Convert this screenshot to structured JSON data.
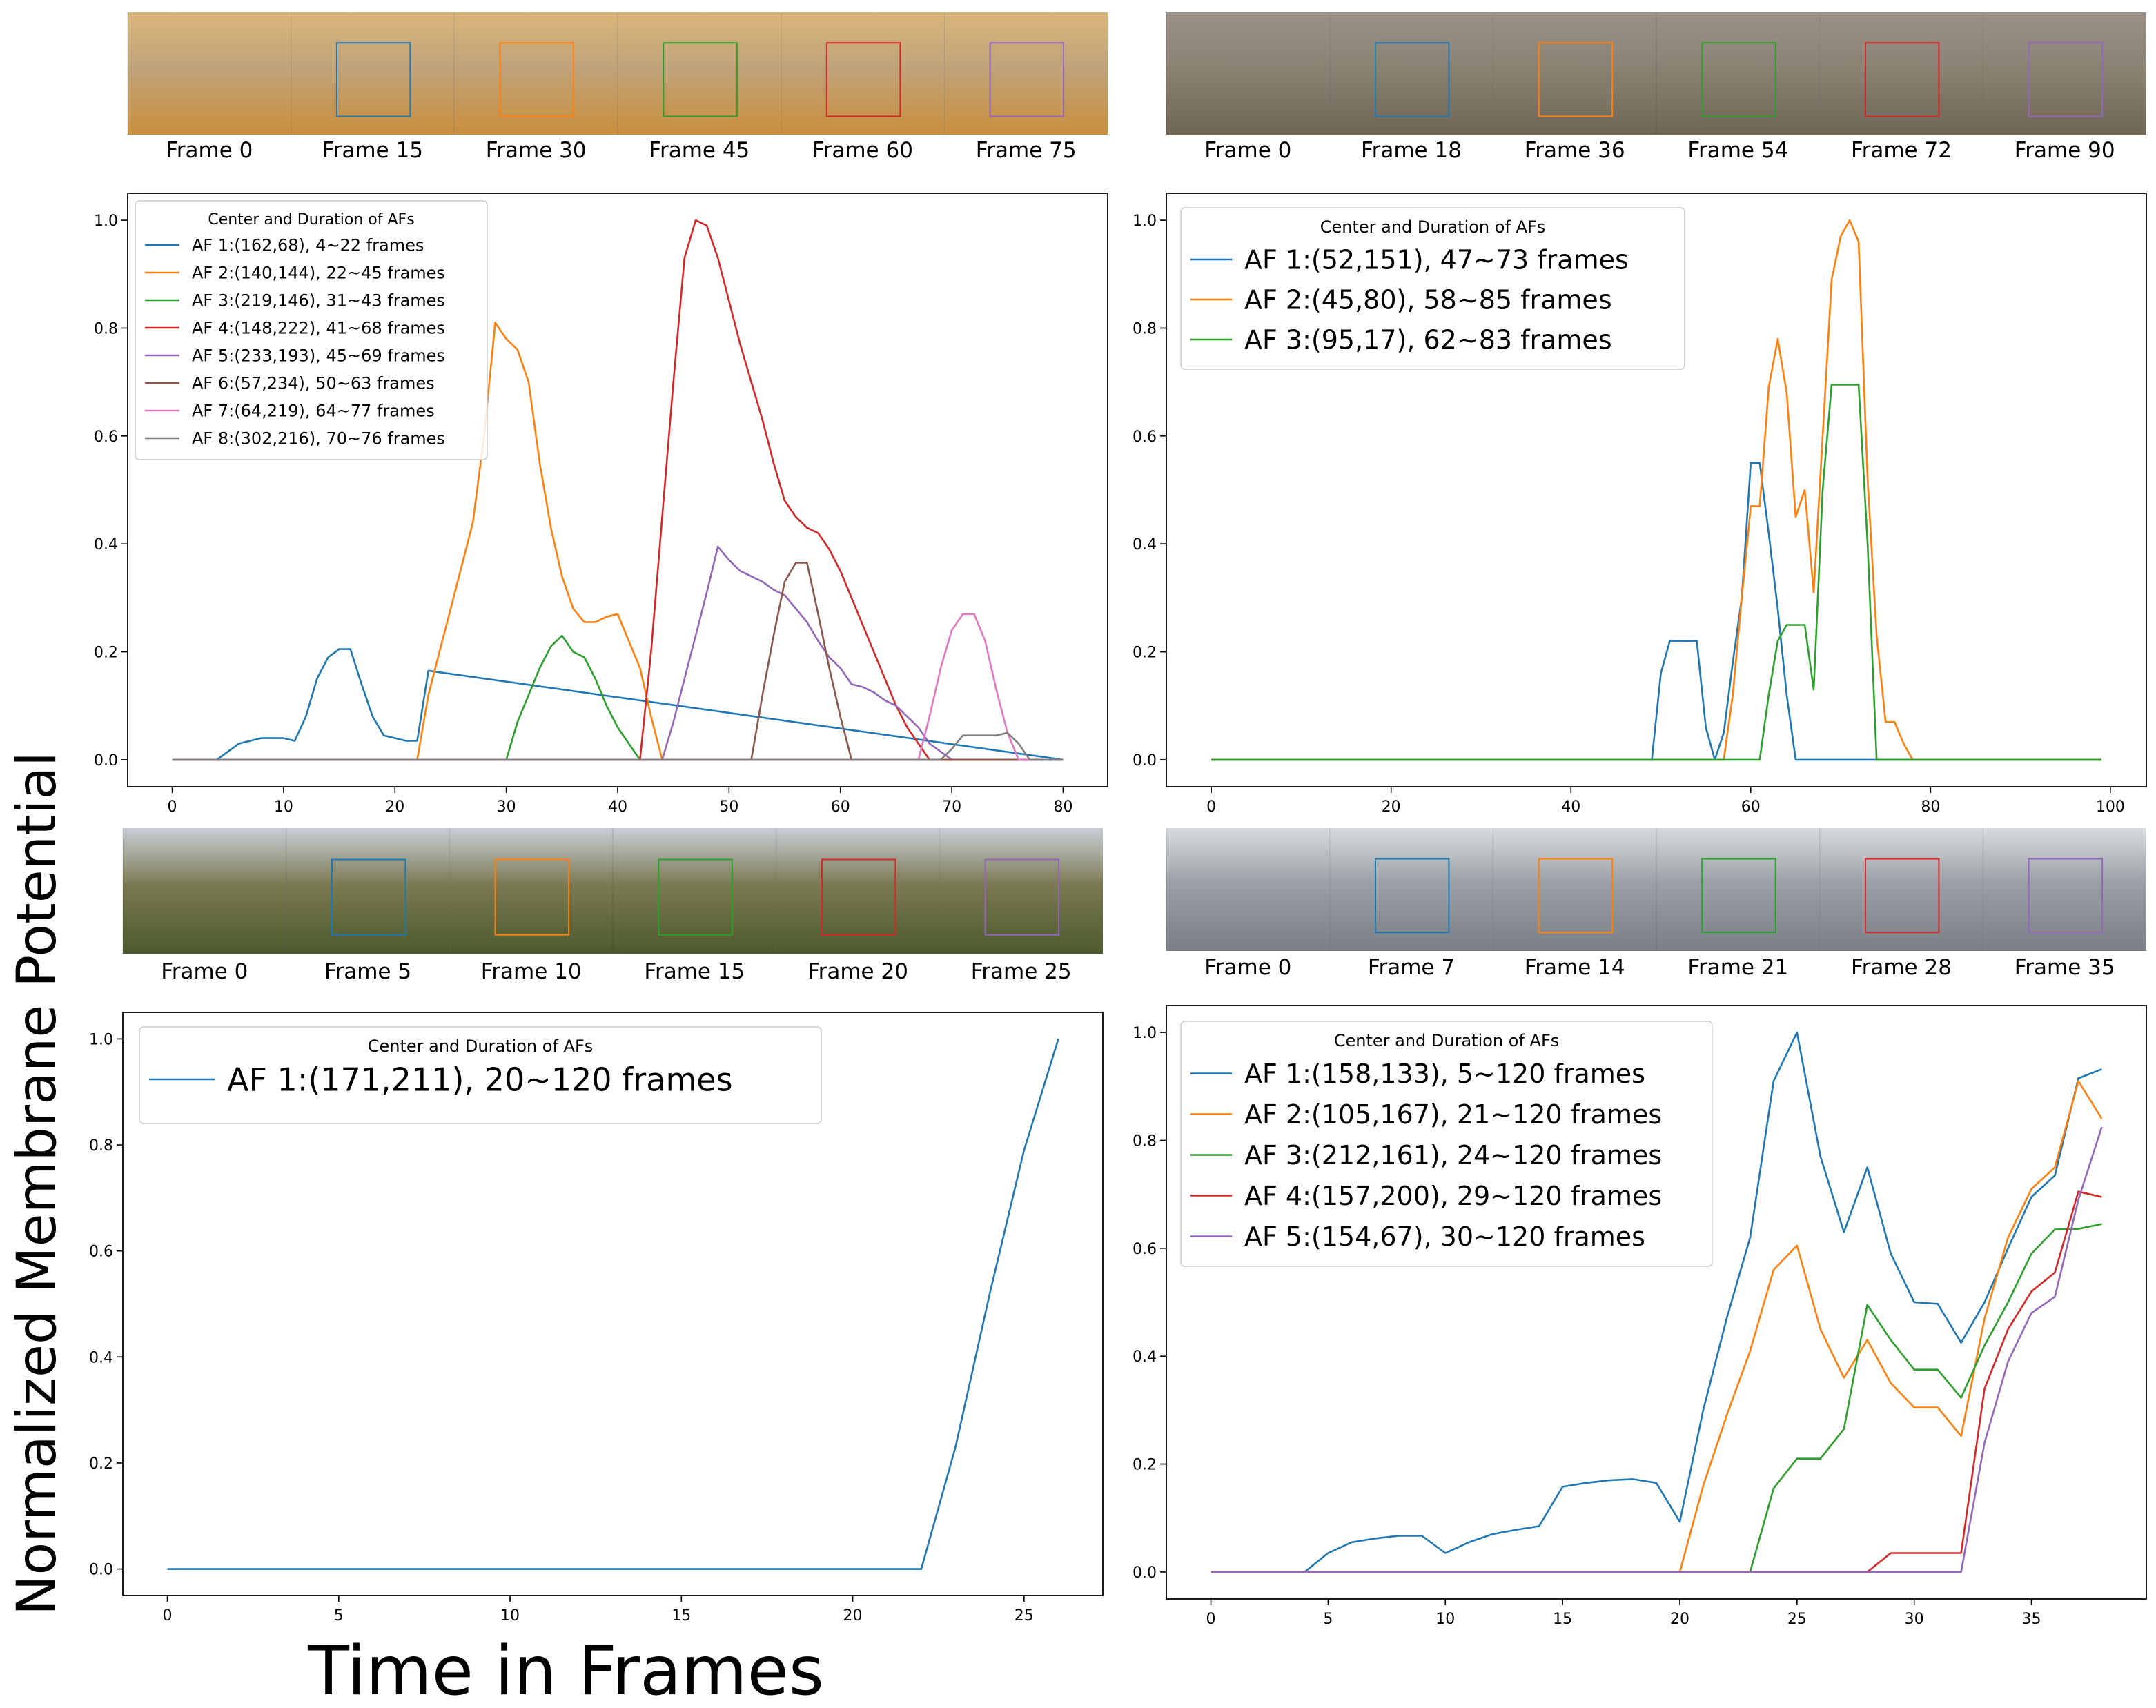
{
  "ylabel": "Normalized Membrane Potential",
  "xlabel": "Time in Frames",
  "colors": [
    "#1f77b4",
    "#ff7f0e",
    "#2ca02c",
    "#d62728",
    "#9467bd",
    "#8c564b",
    "#e377c2",
    "#7f7f7f"
  ],
  "thumbnails": [
    {
      "name": "desert-car",
      "labels": [
        "Frame 0",
        "Frame 15",
        "Frame 30",
        "Frame 45",
        "Frame 60",
        "Frame 75"
      ],
      "scene": [
        "#d9b67a",
        "#c98f3d",
        "#bfa37a"
      ]
    },
    {
      "name": "bear",
      "labels": [
        "Frame 0",
        "Frame 18",
        "Frame 36",
        "Frame 54",
        "Frame 72",
        "Frame 90"
      ],
      "scene": [
        "#9a9287",
        "#6f6656",
        "#8a8273"
      ]
    },
    {
      "name": "bird-forest",
      "labels": [
        "Frame 0",
        "Frame 5",
        "Frame 10",
        "Frame 15",
        "Frame 20",
        "Frame 25"
      ],
      "scene": [
        "#c9ced6",
        "#4d5a2e",
        "#7b7a52"
      ]
    },
    {
      "name": "eagle-cliff",
      "labels": [
        "Frame 0",
        "Frame 7",
        "Frame 14",
        "Frame 21",
        "Frame 28",
        "Frame 35"
      ],
      "scene": [
        "#d7dadd",
        "#7a7f85",
        "#9aa0a6"
      ]
    }
  ],
  "chart_data": [
    {
      "type": "line",
      "legend_title": "Center and Duration of AFs",
      "legend_location": "upper-left",
      "xlim": [
        -4,
        84
      ],
      "ylim": [
        -0.05,
        1.05
      ],
      "xticks": [
        0,
        10,
        20,
        30,
        40,
        50,
        60,
        70,
        80
      ],
      "yticks": [
        0.0,
        0.2,
        0.4,
        0.6,
        0.8,
        1.0
      ],
      "series": [
        {
          "name": "AF 1:(162,68), 4~22 frames",
          "x": [
            0,
            4,
            5,
            6,
            7,
            8,
            9,
            10,
            11,
            12,
            13,
            14,
            15,
            16,
            17,
            18,
            19,
            20,
            21,
            22,
            23,
            80
          ],
          "y": [
            0,
            0,
            0.015,
            0.03,
            0.035,
            0.04,
            0.04,
            0.04,
            0.035,
            0.08,
            0.15,
            0.19,
            0.205,
            0.205,
            0.14,
            0.08,
            0.045,
            0.04,
            0.035,
            0.035,
            0.165,
            0
          ]
        },
        {
          "name": "AF 2:(140,144), 22~45 frames",
          "x": [
            0,
            22,
            23,
            24,
            25,
            26,
            27,
            28,
            29,
            30,
            31,
            32,
            33,
            34,
            35,
            36,
            37,
            38,
            39,
            40,
            41,
            42,
            43,
            44,
            80
          ],
          "y": [
            0,
            0,
            0.12,
            0.2,
            0.28,
            0.36,
            0.44,
            0.6,
            0.81,
            0.78,
            0.76,
            0.7,
            0.55,
            0.43,
            0.34,
            0.28,
            0.255,
            0.255,
            0.265,
            0.27,
            0.22,
            0.17,
            0.08,
            0,
            0
          ]
        },
        {
          "name": "AF 3:(219,146), 31~43 frames",
          "x": [
            0,
            30,
            31,
            32,
            33,
            34,
            35,
            36,
            37,
            38,
            39,
            40,
            41,
            42,
            80
          ],
          "y": [
            0,
            0,
            0.07,
            0.12,
            0.17,
            0.21,
            0.23,
            0.2,
            0.19,
            0.15,
            0.1,
            0.06,
            0.03,
            0,
            0
          ]
        },
        {
          "name": "AF 4:(148,222), 41~68 frames",
          "x": [
            0,
            42,
            43,
            44,
            45,
            46,
            47,
            48,
            49,
            50,
            51,
            52,
            53,
            54,
            55,
            56,
            57,
            58,
            59,
            60,
            61,
            62,
            63,
            64,
            65,
            66,
            67,
            68,
            80
          ],
          "y": [
            0,
            0,
            0.2,
            0.45,
            0.7,
            0.93,
            1.0,
            0.99,
            0.93,
            0.85,
            0.77,
            0.7,
            0.63,
            0.55,
            0.48,
            0.45,
            0.43,
            0.42,
            0.39,
            0.35,
            0.3,
            0.25,
            0.2,
            0.15,
            0.1,
            0.06,
            0.03,
            0,
            0
          ]
        },
        {
          "name": "AF 5:(233,193), 45~69 frames",
          "x": [
            0,
            44,
            45,
            46,
            47,
            48,
            49,
            50,
            51,
            52,
            53,
            54,
            55,
            56,
            57,
            58,
            59,
            60,
            61,
            62,
            63,
            64,
            65,
            66,
            67,
            68,
            69,
            70,
            80
          ],
          "y": [
            0,
            0,
            0.07,
            0.15,
            0.23,
            0.31,
            0.395,
            0.37,
            0.35,
            0.34,
            0.33,
            0.315,
            0.305,
            0.28,
            0.255,
            0.22,
            0.19,
            0.17,
            0.14,
            0.135,
            0.125,
            0.11,
            0.1,
            0.08,
            0.06,
            0.03,
            0.015,
            0,
            0
          ]
        },
        {
          "name": "AF 6:(57,234), 50~63 frames",
          "x": [
            0,
            52,
            53,
            54,
            55,
            56,
            57,
            58,
            59,
            60,
            61,
            80
          ],
          "y": [
            0,
            0,
            0.12,
            0.23,
            0.33,
            0.365,
            0.365,
            0.27,
            0.17,
            0.08,
            0,
            0
          ]
        },
        {
          "name": "AF 7:(64,219), 64~77 frames",
          "x": [
            0,
            67,
            68,
            69,
            70,
            71,
            72,
            73,
            74,
            75,
            76,
            80
          ],
          "y": [
            0,
            0,
            0.08,
            0.17,
            0.24,
            0.27,
            0.27,
            0.22,
            0.13,
            0.05,
            0,
            0
          ]
        },
        {
          "name": "AF 8:(302,216), 70~76 frames",
          "x": [
            0,
            69,
            70,
            71,
            72,
            73,
            74,
            75,
            76,
            77,
            80
          ],
          "y": [
            0,
            0,
            0.02,
            0.045,
            0.045,
            0.045,
            0.045,
            0.05,
            0.03,
            0,
            0
          ]
        }
      ]
    },
    {
      "type": "line",
      "legend_title": "Center and Duration of AFs",
      "legend_location": "upper-left",
      "xlim": [
        -5,
        104
      ],
      "ylim": [
        -0.05,
        1.05
      ],
      "xticks": [
        0,
        20,
        40,
        60,
        80,
        100
      ],
      "yticks": [
        0.0,
        0.2,
        0.4,
        0.6,
        0.8,
        1.0
      ],
      "series": [
        {
          "name": "AF 1:(52,151), 47~73 frames",
          "x": [
            0,
            49,
            50,
            51,
            52,
            53,
            54,
            55,
            56,
            57,
            58,
            59,
            60,
            61,
            62,
            63,
            64,
            65,
            99
          ],
          "y": [
            0,
            0,
            0.16,
            0.22,
            0.22,
            0.22,
            0.22,
            0.06,
            0,
            0.05,
            0.18,
            0.3,
            0.55,
            0.55,
            0.42,
            0.28,
            0.12,
            0,
            0
          ]
        },
        {
          "name": "AF 2:(45,80), 58~85 frames",
          "x": [
            0,
            57,
            58,
            59,
            60,
            61,
            62,
            63,
            64,
            65,
            66,
            67,
            68,
            69,
            70,
            71,
            72,
            73,
            74,
            75,
            76,
            77,
            78,
            99
          ],
          "y": [
            0,
            0,
            0.12,
            0.3,
            0.47,
            0.47,
            0.69,
            0.78,
            0.68,
            0.45,
            0.5,
            0.31,
            0.6,
            0.89,
            0.97,
            1.0,
            0.96,
            0.52,
            0.23,
            0.07,
            0.07,
            0.03,
            0,
            0
          ]
        },
        {
          "name": "AF 3:(95,17), 62~83 frames",
          "x": [
            0,
            61,
            62,
            63,
            64,
            65,
            66,
            67,
            68,
            69,
            70,
            71,
            72,
            73,
            74,
            99
          ],
          "y": [
            0,
            0,
            0.12,
            0.22,
            0.25,
            0.25,
            0.25,
            0.13,
            0.5,
            0.695,
            0.695,
            0.695,
            0.695,
            0.4,
            0,
            0
          ]
        }
      ]
    },
    {
      "type": "line",
      "legend_title": "Center and Duration of AFs",
      "legend_location": "upper-left",
      "xlim": [
        -1.3,
        27.3
      ],
      "ylim": [
        -0.05,
        1.05
      ],
      "xticks": [
        0,
        5,
        10,
        15,
        20,
        25
      ],
      "yticks": [
        0.0,
        0.2,
        0.4,
        0.6,
        0.8,
        1.0
      ],
      "series": [
        {
          "name": "AF 1:(171,211), 20~120 frames",
          "x": [
            0,
            22,
            23,
            24,
            25,
            26
          ],
          "y": [
            0,
            0,
            0.23,
            0.52,
            0.79,
            1.0
          ]
        }
      ]
    },
    {
      "type": "line",
      "legend_title": "Center and Duration of AFs",
      "legend_location": "upper-left",
      "xlim": [
        -1.9,
        39.9
      ],
      "ylim": [
        -0.05,
        1.05
      ],
      "xticks": [
        0,
        5,
        10,
        15,
        20,
        25,
        30,
        35
      ],
      "yticks": [
        0.0,
        0.2,
        0.4,
        0.6,
        0.8,
        1.0
      ],
      "series": [
        {
          "name": "AF 1:(158,133), 5~120 frames",
          "x": [
            0,
            4,
            5,
            6,
            7,
            8,
            9,
            10,
            11,
            12,
            13,
            14,
            15,
            16,
            17,
            18,
            19,
            20,
            21,
            22,
            23,
            24,
            25,
            26,
            27,
            28,
            29,
            30,
            31,
            32,
            33,
            34,
            35,
            36,
            37,
            38
          ],
          "y": [
            0,
            0,
            0.035,
            0.055,
            0.062,
            0.067,
            0.067,
            0.035,
            0.055,
            0.07,
            0.078,
            0.085,
            0.158,
            0.165,
            0.17,
            0.172,
            0.165,
            0.093,
            0.3,
            0.47,
            0.62,
            0.91,
            1.0,
            0.77,
            0.63,
            0.75,
            0.59,
            0.5,
            0.497,
            0.425,
            0.5,
            0.6,
            0.695,
            0.735,
            0.915,
            0.932
          ]
        },
        {
          "name": "AF 2:(105,167), 21~120 frames",
          "x": [
            0,
            20,
            21,
            22,
            23,
            24,
            25,
            26,
            27,
            28,
            29,
            30,
            31,
            32,
            33,
            34,
            35,
            36,
            37,
            38
          ],
          "y": [
            0,
            0,
            0.16,
            0.29,
            0.41,
            0.56,
            0.605,
            0.45,
            0.36,
            0.43,
            0.35,
            0.305,
            0.305,
            0.252,
            0.47,
            0.62,
            0.71,
            0.75,
            0.91,
            0.84
          ]
        },
        {
          "name": "AF 3:(212,161), 24~120 frames",
          "x": [
            0,
            23,
            24,
            25,
            26,
            27,
            28,
            29,
            30,
            31,
            32,
            33,
            34,
            35,
            36,
            37,
            38
          ],
          "y": [
            0,
            0,
            0.155,
            0.21,
            0.21,
            0.265,
            0.495,
            0.43,
            0.375,
            0.375,
            0.323,
            0.42,
            0.5,
            0.59,
            0.635,
            0.636,
            0.645
          ]
        },
        {
          "name": "AF 4:(157,200), 29~120 frames",
          "x": [
            0,
            28,
            29,
            30,
            31,
            32,
            33,
            34,
            35,
            36,
            37,
            38
          ],
          "y": [
            0,
            0,
            0.035,
            0.035,
            0.035,
            0.035,
            0.34,
            0.45,
            0.52,
            0.555,
            0.705,
            0.695
          ]
        },
        {
          "name": "AF 5:(154,67), 30~120 frames",
          "x": [
            0,
            32,
            33,
            34,
            35,
            36,
            37,
            38
          ],
          "y": [
            0,
            0,
            0.24,
            0.39,
            0.48,
            0.51,
            0.69,
            0.825
          ]
        }
      ]
    }
  ]
}
